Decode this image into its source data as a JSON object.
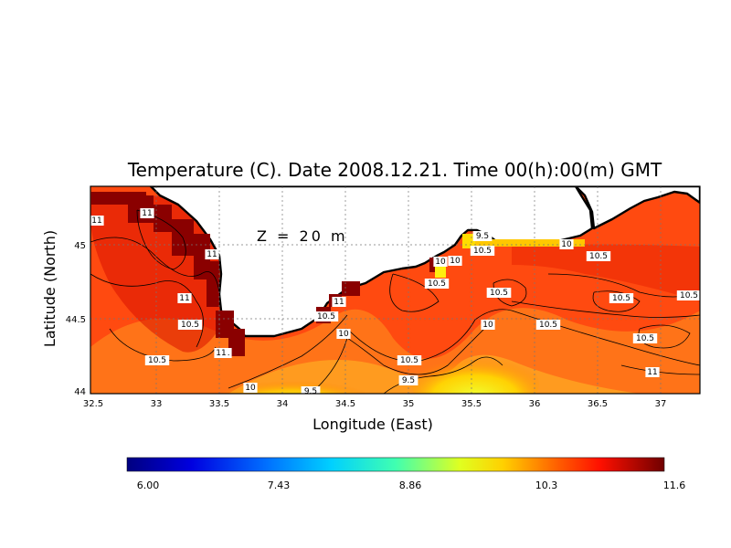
{
  "map": {
    "title": "Temperature (C). Date 2008.12.21. Time 00(h):00(m) GMT",
    "depth_annotation": "Z = 20 m",
    "xlabel": "Longitude (East)",
    "ylabel": "Latitude (North)",
    "x_ticks": [
      "32.5",
      "33",
      "33.5",
      "34",
      "34.5",
      "35",
      "35.5",
      "36",
      "36.5",
      "37"
    ],
    "y_ticks": [
      "44",
      "44.5",
      "45"
    ],
    "contour_labels": [
      "11",
      "11",
      "11",
      "11",
      "11",
      "10.5",
      "10.5",
      "11",
      "10",
      "9.5",
      "11",
      "10.5",
      "10",
      "10.5",
      "9.5",
      "10",
      "10.5",
      "10.5",
      "10",
      "10",
      "10.5",
      "9.5",
      "10",
      "10.5",
      "10.5",
      "10.5",
      "10.5",
      "10.5",
      "10.5",
      "11"
    ],
    "colorbar": {
      "tick_labels": [
        "6.00",
        "7.43",
        "8.86",
        "10.3",
        "11.6"
      ],
      "min": 6.0,
      "max": 11.6
    },
    "colors": {
      "cold": "#000080",
      "cool": "#00aaff",
      "mid": "#ffff00",
      "warm": "#ff3000",
      "hot": "#800000",
      "land": "#ffffff",
      "coastline": "#000000"
    }
  }
}
